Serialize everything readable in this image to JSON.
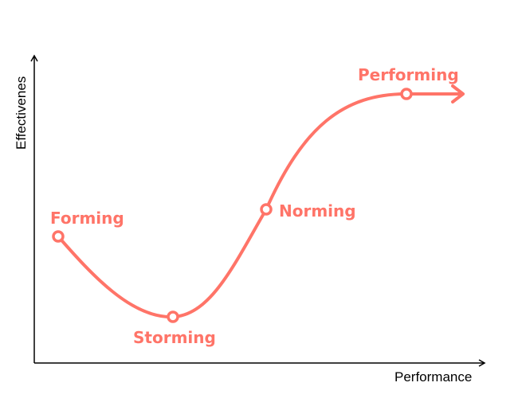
{
  "diagram": {
    "x_axis_label": "Performance",
    "y_axis_label": "Effectivenes",
    "accent_color": "#FF7468",
    "axis_color": "#000000",
    "stages": [
      {
        "label": "Forming"
      },
      {
        "label": "Storming"
      },
      {
        "label": "Norming"
      },
      {
        "label": "Performing"
      }
    ]
  }
}
